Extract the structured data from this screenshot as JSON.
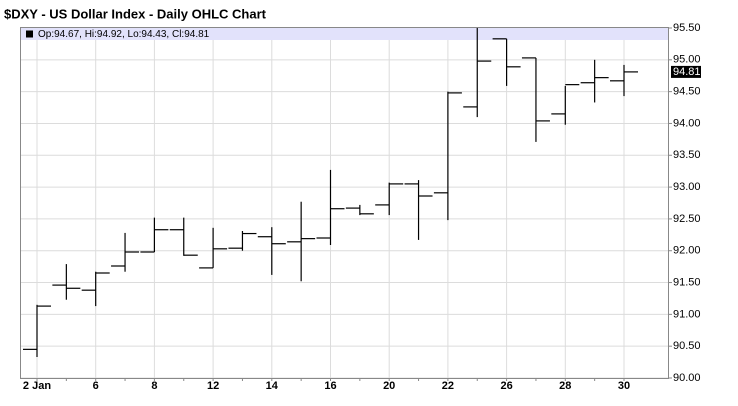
{
  "chart_data": {
    "type": "ohlc",
    "title": "$DXY - US Dollar Index - Daily OHLC Chart",
    "info_label": "Op:94.67, Hi:94.92, Lo:94.43, Cl:94.81",
    "categories": [
      "2 Jan",
      null,
      "6",
      null,
      "8",
      null,
      "12",
      null,
      "14",
      null,
      "16",
      null,
      "20",
      null,
      "22",
      null,
      "26",
      null,
      "28",
      null,
      "30"
    ],
    "open": [
      90.45,
      91.46,
      91.38,
      91.76,
      91.98,
      92.33,
      91.73,
      92.04,
      92.22,
      92.14,
      92.2,
      92.67,
      92.72,
      93.05,
      92.91,
      94.26,
      95.33,
      95.03,
      94.15,
      94.64,
      94.67
    ],
    "high": [
      91.15,
      91.79,
      91.67,
      92.28,
      92.52,
      92.52,
      92.36,
      92.31,
      92.37,
      92.77,
      93.27,
      92.72,
      93.07,
      93.11,
      94.5,
      95.5,
      95.33,
      95.03,
      94.59,
      95.0,
      94.92
    ],
    "low": [
      90.33,
      91.23,
      91.13,
      91.67,
      91.98,
      91.92,
      91.73,
      92.0,
      91.62,
      91.52,
      92.09,
      92.56,
      92.56,
      92.17,
      92.48,
      94.1,
      94.59,
      93.71,
      93.98,
      94.33,
      94.43
    ],
    "close": [
      91.13,
      91.41,
      91.65,
      91.98,
      92.33,
      91.93,
      92.03,
      92.27,
      92.11,
      92.19,
      92.66,
      92.58,
      93.05,
      92.86,
      94.48,
      94.98,
      94.89,
      94.04,
      94.61,
      94.72,
      94.81
    ],
    "color": "#000000",
    "ylim": [
      90,
      95.5
    ],
    "yticks": [
      {
        "value": 90,
        "label": "90.00"
      },
      {
        "value": 90.5,
        "label": "90.50"
      },
      {
        "value": 91,
        "label": "91.00"
      },
      {
        "value": 91.5,
        "label": "91.50"
      },
      {
        "value": 92,
        "label": "92.00"
      },
      {
        "value": 92.5,
        "label": "92.50"
      },
      {
        "value": 93,
        "label": "93.00"
      },
      {
        "value": 93.5,
        "label": "93.50"
      },
      {
        "value": 94,
        "label": "94.00"
      },
      {
        "value": 94.5,
        "label": "94.50"
      },
      {
        "value": 95,
        "label": "95.00"
      },
      {
        "value": 95.5,
        "label": "95.50"
      }
    ],
    "grid": true
  }
}
